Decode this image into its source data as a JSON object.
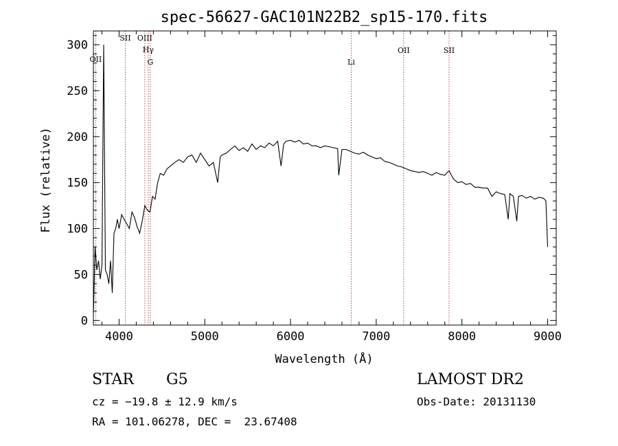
{
  "chart_data": {
    "type": "line",
    "title": "spec-56627-GAC101N22B2_sp15-170.fits",
    "xlabel": "Wavelength (Å)",
    "ylabel": "Flux (relative)",
    "xlim": [
      3700,
      9100
    ],
    "ylim": [
      -5,
      315
    ],
    "x_ticks": [
      "4000",
      "5000",
      "6000",
      "7000",
      "8000",
      "9000"
    ],
    "y_ticks": [
      "0",
      "50",
      "100",
      "150",
      "200",
      "250",
      "300"
    ],
    "x_tick_values": [
      4000,
      5000,
      6000,
      7000,
      8000,
      9000
    ],
    "y_tick_values": [
      0,
      50,
      100,
      150,
      200,
      250,
      300
    ],
    "grid": false,
    "series": [
      {
        "x": [
          3700,
          3720,
          3740,
          3760,
          3780,
          3800,
          3820,
          3840,
          3860,
          3880,
          3900,
          3920,
          3940,
          3960,
          3980,
          4000,
          4030,
          4060,
          4090,
          4120,
          4150,
          4180,
          4210,
          4240,
          4270,
          4300,
          4330,
          4360,
          4390,
          4420,
          4450,
          4480,
          4520,
          4560,
          4600,
          4650,
          4700,
          4750,
          4800,
          4850,
          4900,
          4950,
          5000,
          5050,
          5100,
          5150,
          5180,
          5200,
          5250,
          5300,
          5350,
          5400,
          5450,
          5500,
          5550,
          5600,
          5650,
          5700,
          5750,
          5800,
          5850,
          5890,
          5920,
          5950,
          6000,
          6050,
          6100,
          6150,
          6200,
          6250,
          6300,
          6350,
          6400,
          6450,
          6500,
          6550,
          6563,
          6600,
          6650,
          6700,
          6750,
          6800,
          6850,
          6900,
          6950,
          7000,
          7050,
          7100,
          7150,
          7200,
          7250,
          7300,
          7350,
          7400,
          7450,
          7500,
          7550,
          7600,
          7650,
          7700,
          7750,
          7800,
          7850,
          7900,
          7950,
          8000,
          8050,
          8100,
          8150,
          8200,
          8250,
          8300,
          8350,
          8400,
          8450,
          8500,
          8540,
          8560,
          8600,
          8640,
          8660,
          8700,
          8750,
          8800,
          8850,
          8900,
          8950,
          8980,
          9000
        ],
        "y": [
          5,
          80,
          55,
          65,
          45,
          60,
          300,
          55,
          50,
          40,
          65,
          30,
          95,
          100,
          110,
          100,
          115,
          110,
          105,
          100,
          118,
          112,
          102,
          95,
          108,
          125,
          120,
          118,
          135,
          132,
          150,
          160,
          158,
          165,
          168,
          172,
          175,
          172,
          178,
          180,
          172,
          182,
          175,
          168,
          172,
          150,
          178,
          180,
          182,
          186,
          190,
          185,
          188,
          184,
          192,
          186,
          190,
          188,
          193,
          190,
          195,
          168,
          192,
          195,
          196,
          194,
          196,
          192,
          193,
          190,
          190,
          188,
          190,
          189,
          188,
          187,
          158,
          186,
          186,
          184,
          182,
          181,
          183,
          180,
          178,
          176,
          177,
          173,
          172,
          170,
          168,
          167,
          165,
          163,
          162,
          161,
          162,
          160,
          158,
          161,
          159,
          158,
          163,
          154,
          150,
          151,
          148,
          149,
          145,
          145,
          144,
          144,
          135,
          140,
          138,
          137,
          110,
          138,
          135,
          108,
          135,
          136,
          133,
          135,
          132,
          134,
          133,
          130,
          80
        ]
      }
    ],
    "line_markers": [
      {
        "label": "OII",
        "x": 3727
      },
      {
        "label": "SII",
        "x": 4072
      },
      {
        "label": "OIII",
        "x": 4300
      },
      {
        "label": "Hγ",
        "x": 4340
      },
      {
        "label": "G",
        "x": 4364
      },
      {
        "label": "Li",
        "x": 6708
      },
      {
        "label": "OII",
        "x": 7320
      },
      {
        "label": "SII",
        "x": 7850
      }
    ]
  },
  "info": {
    "class": "STAR",
    "subclass": "G5",
    "survey": "LAMOST DR2",
    "cz": "cz = −19.8 ± 12.9 km/s",
    "obs_date": "Obs-Date: 20131130",
    "coords": "RA = 101.06278, DEC =  23.67408"
  }
}
